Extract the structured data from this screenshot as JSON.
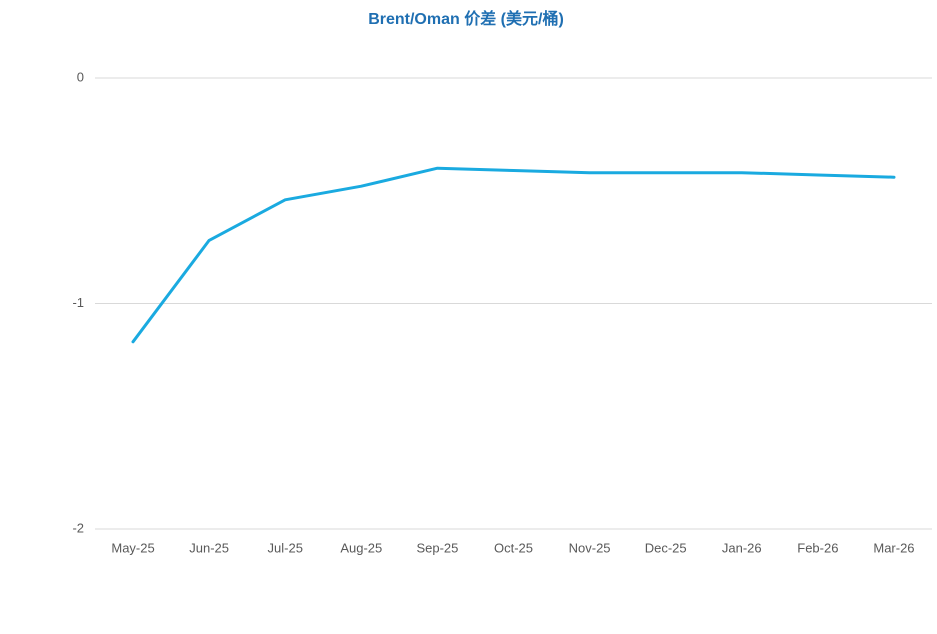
{
  "chart_data": {
    "type": "line",
    "title": "Brent/Oman 价差 (美元/桶)",
    "categories": [
      "May-25",
      "Jun-25",
      "Jul-25",
      "Aug-25",
      "Sep-25",
      "Oct-25",
      "Nov-25",
      "Dec-25",
      "Jan-26",
      "Feb-26",
      "Mar-26"
    ],
    "values": [
      -1.17,
      -0.72,
      -0.54,
      -0.48,
      -0.4,
      -0.41,
      -0.42,
      -0.42,
      -0.42,
      -0.43,
      -0.44
    ],
    "color": "#1aaae0",
    "ylim": [
      -2,
      0
    ],
    "yticks": [
      0,
      -1,
      -2
    ],
    "grid": true
  }
}
